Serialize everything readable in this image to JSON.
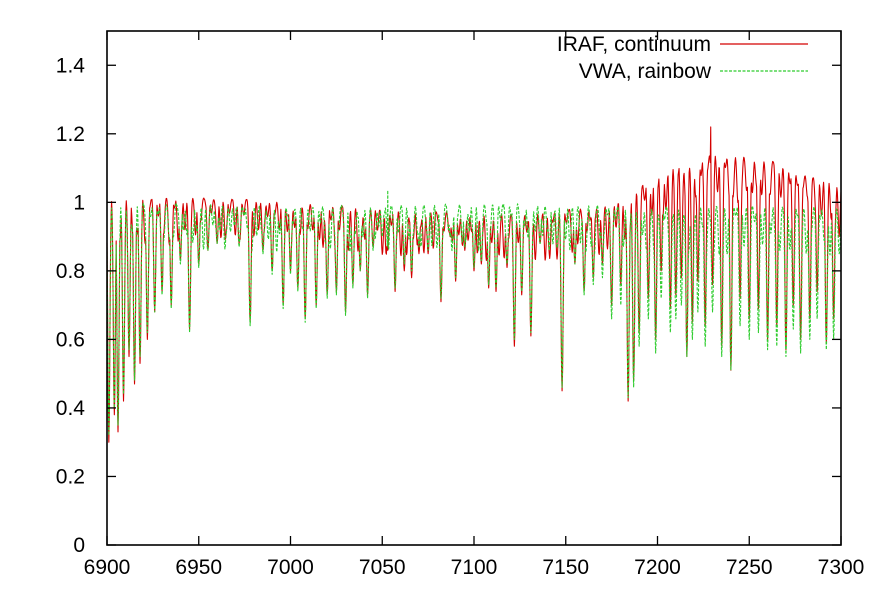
{
  "chart_data": {
    "type": "line",
    "title": "",
    "xlabel": "",
    "ylabel": "",
    "xlim": [
      6900,
      7300
    ],
    "ylim": [
      0,
      1.5
    ],
    "xticks": [
      6900,
      6950,
      7000,
      7050,
      7100,
      7150,
      7200,
      7250,
      7300
    ],
    "xtick_labels": [
      "6900",
      "6950",
      "7000",
      "7050",
      "7100",
      "7150",
      "7200",
      "7250",
      "7300"
    ],
    "yticks": [
      0,
      0.2,
      0.4,
      0.6,
      0.8,
      1,
      1.2,
      1.4
    ],
    "ytick_labels": [
      "0",
      "0.2",
      "0.4",
      "0.6",
      "0.8",
      "1",
      "1.2",
      "1.4"
    ],
    "grid": false,
    "legend_position": "top-right",
    "series": [
      {
        "name": "IRAF, continuum",
        "color": "#d40000",
        "style": "solid",
        "continuum": [
          [
            6900,
            1.02
          ],
          [
            6980,
            1.01
          ],
          [
            7050,
            0.985
          ],
          [
            7080,
            0.975
          ],
          [
            7100,
            0.975
          ],
          [
            7130,
            0.97
          ],
          [
            7160,
            0.985
          ],
          [
            7175,
            1.0
          ],
          [
            7185,
            1.03
          ],
          [
            7200,
            1.09
          ],
          [
            7215,
            1.13
          ],
          [
            7230,
            1.145
          ],
          [
            7250,
            1.135
          ],
          [
            7265,
            1.12
          ],
          [
            7280,
            1.085
          ],
          [
            7300,
            1.06
          ]
        ],
        "noise_amplitude": 0.01,
        "absorption_lines": [
          [
            6901,
            0.3
          ],
          [
            6904,
            0.38
          ],
          [
            6906,
            0.33
          ],
          [
            6909,
            0.42
          ],
          [
            6912,
            0.55
          ],
          [
            6915,
            0.47
          ],
          [
            6918,
            0.53
          ],
          [
            6922,
            0.6
          ],
          [
            6926,
            0.68
          ],
          [
            6930,
            0.74
          ],
          [
            6935,
            0.7
          ],
          [
            6940,
            0.83
          ],
          [
            6945,
            0.63
          ],
          [
            6950,
            0.82
          ],
          [
            6955,
            0.86
          ],
          [
            6960,
            0.88
          ],
          [
            6965,
            0.92
          ],
          [
            6972,
            0.88
          ],
          [
            6978,
            0.65
          ],
          [
            6985,
            0.86
          ],
          [
            6990,
            0.8
          ],
          [
            6996,
            0.7
          ],
          [
            7000,
            0.8
          ],
          [
            7004,
            0.75
          ],
          [
            7008,
            0.66
          ],
          [
            7014,
            0.7
          ],
          [
            7020,
            0.73
          ],
          [
            7025,
            0.74
          ],
          [
            7030,
            0.68
          ],
          [
            7034,
            0.76
          ],
          [
            7038,
            0.8
          ],
          [
            7042,
            0.73
          ],
          [
            7045,
            0.87
          ],
          [
            7050,
            0.9
          ],
          [
            7053,
            0.86
          ],
          [
            7057,
            0.74
          ],
          [
            7062,
            0.8
          ],
          [
            7066,
            0.78
          ],
          [
            7070,
            0.85
          ],
          [
            7075,
            0.85
          ],
          [
            7082,
            0.71
          ],
          [
            7087,
            0.9
          ],
          [
            7090,
            0.77
          ],
          [
            7095,
            0.86
          ],
          [
            7100,
            0.8
          ],
          [
            7104,
            0.82
          ],
          [
            7108,
            0.75
          ],
          [
            7112,
            0.74
          ],
          [
            7118,
            0.81
          ],
          [
            7122,
            0.58
          ],
          [
            7126,
            0.73
          ],
          [
            7131,
            0.61
          ],
          [
            7136,
            0.88
          ],
          [
            7141,
            0.86
          ],
          [
            7148,
            0.45
          ],
          [
            7155,
            0.82
          ],
          [
            7160,
            0.74
          ],
          [
            7165,
            0.78
          ],
          [
            7170,
            0.82
          ],
          [
            7175,
            0.7
          ],
          [
            7180,
            0.76
          ],
          [
            7184,
            0.42
          ],
          [
            7187,
            0.48
          ],
          [
            7190,
            0.62
          ],
          [
            7195,
            0.72
          ],
          [
            7199,
            0.6
          ],
          [
            7202,
            0.8
          ],
          [
            7207,
            0.69
          ],
          [
            7210,
            0.73
          ],
          [
            7213,
            0.78
          ],
          [
            7216,
            0.55
          ],
          [
            7219,
            0.65
          ],
          [
            7222,
            0.77
          ],
          [
            7226,
            0.64
          ],
          [
            7230,
            0.76
          ],
          [
            7235,
            0.58
          ],
          [
            7240,
            0.51
          ],
          [
            7245,
            0.72
          ],
          [
            7250,
            0.66
          ],
          [
            7255,
            0.69
          ],
          [
            7260,
            0.6
          ],
          [
            7265,
            0.64
          ],
          [
            7270,
            0.57
          ],
          [
            7274,
            0.7
          ],
          [
            7278,
            0.6
          ],
          [
            7283,
            0.66
          ],
          [
            7287,
            0.74
          ],
          [
            7292,
            0.59
          ],
          [
            7296,
            0.66
          ],
          [
            7299,
            0.9
          ]
        ],
        "spikes": [
          [
            7229,
            1.22
          ]
        ]
      },
      {
        "name": "VWA, rainbow",
        "color": "#2ecc2e",
        "style": "dashed",
        "continuum": [
          [
            6900,
            1.0
          ],
          [
            6950,
            1.0
          ],
          [
            7000,
            0.99
          ],
          [
            7050,
            0.995
          ],
          [
            7100,
            1.0
          ],
          [
            7160,
            0.995
          ],
          [
            7200,
            0.995
          ],
          [
            7250,
            0.995
          ],
          [
            7300,
            0.99
          ]
        ],
        "noise_amplitude": 0.012,
        "absorption_lines": [
          [
            6901,
            0.32
          ],
          [
            6904,
            0.4
          ],
          [
            6906,
            0.35
          ],
          [
            6909,
            0.44
          ],
          [
            6912,
            0.57
          ],
          [
            6915,
            0.48
          ],
          [
            6918,
            0.55
          ],
          [
            6922,
            0.62
          ],
          [
            6926,
            0.68
          ],
          [
            6930,
            0.73
          ],
          [
            6935,
            0.69
          ],
          [
            6940,
            0.82
          ],
          [
            6945,
            0.62
          ],
          [
            6950,
            0.81
          ],
          [
            6955,
            0.86
          ],
          [
            6960,
            0.88
          ],
          [
            6965,
            0.91
          ],
          [
            6972,
            0.87
          ],
          [
            6978,
            0.64
          ],
          [
            6985,
            0.85
          ],
          [
            6990,
            0.79
          ],
          [
            6996,
            0.69
          ],
          [
            7000,
            0.79
          ],
          [
            7004,
            0.74
          ],
          [
            7008,
            0.65
          ],
          [
            7014,
            0.69
          ],
          [
            7020,
            0.72
          ],
          [
            7025,
            0.73
          ],
          [
            7030,
            0.67
          ],
          [
            7034,
            0.75
          ],
          [
            7038,
            0.8
          ],
          [
            7042,
            0.72
          ],
          [
            7045,
            0.86
          ],
          [
            7050,
            0.9
          ],
          [
            7053,
            0.86
          ],
          [
            7057,
            0.75
          ],
          [
            7062,
            0.82
          ],
          [
            7066,
            0.8
          ],
          [
            7070,
            0.87
          ],
          [
            7075,
            0.86
          ],
          [
            7082,
            0.72
          ],
          [
            7087,
            0.9
          ],
          [
            7090,
            0.78
          ],
          [
            7095,
            0.87
          ],
          [
            7100,
            0.81
          ],
          [
            7104,
            0.83
          ],
          [
            7108,
            0.76
          ],
          [
            7112,
            0.75
          ],
          [
            7118,
            0.82
          ],
          [
            7122,
            0.6
          ],
          [
            7126,
            0.74
          ],
          [
            7131,
            0.62
          ],
          [
            7136,
            0.88
          ],
          [
            7141,
            0.86
          ],
          [
            7148,
            0.46
          ],
          [
            7155,
            0.82
          ],
          [
            7160,
            0.73
          ],
          [
            7165,
            0.76
          ],
          [
            7170,
            0.78
          ],
          [
            7175,
            0.66
          ],
          [
            7180,
            0.7
          ],
          [
            7184,
            0.43
          ],
          [
            7187,
            0.46
          ],
          [
            7190,
            0.58
          ],
          [
            7195,
            0.66
          ],
          [
            7199,
            0.56
          ],
          [
            7202,
            0.72
          ],
          [
            7207,
            0.62
          ],
          [
            7210,
            0.66
          ],
          [
            7213,
            0.7
          ],
          [
            7216,
            0.55
          ],
          [
            7219,
            0.6
          ],
          [
            7222,
            0.68
          ],
          [
            7226,
            0.58
          ],
          [
            7230,
            0.68
          ],
          [
            7235,
            0.55
          ],
          [
            7240,
            0.51
          ],
          [
            7245,
            0.64
          ],
          [
            7250,
            0.6
          ],
          [
            7255,
            0.62
          ],
          [
            7260,
            0.57
          ],
          [
            7265,
            0.58
          ],
          [
            7270,
            0.55
          ],
          [
            7274,
            0.63
          ],
          [
            7278,
            0.56
          ],
          [
            7283,
            0.6
          ],
          [
            7287,
            0.66
          ],
          [
            7292,
            0.57
          ],
          [
            7296,
            0.6
          ],
          [
            7299,
            0.85
          ]
        ],
        "spikes": [
          [
            7053,
            1.035
          ]
        ]
      }
    ]
  }
}
